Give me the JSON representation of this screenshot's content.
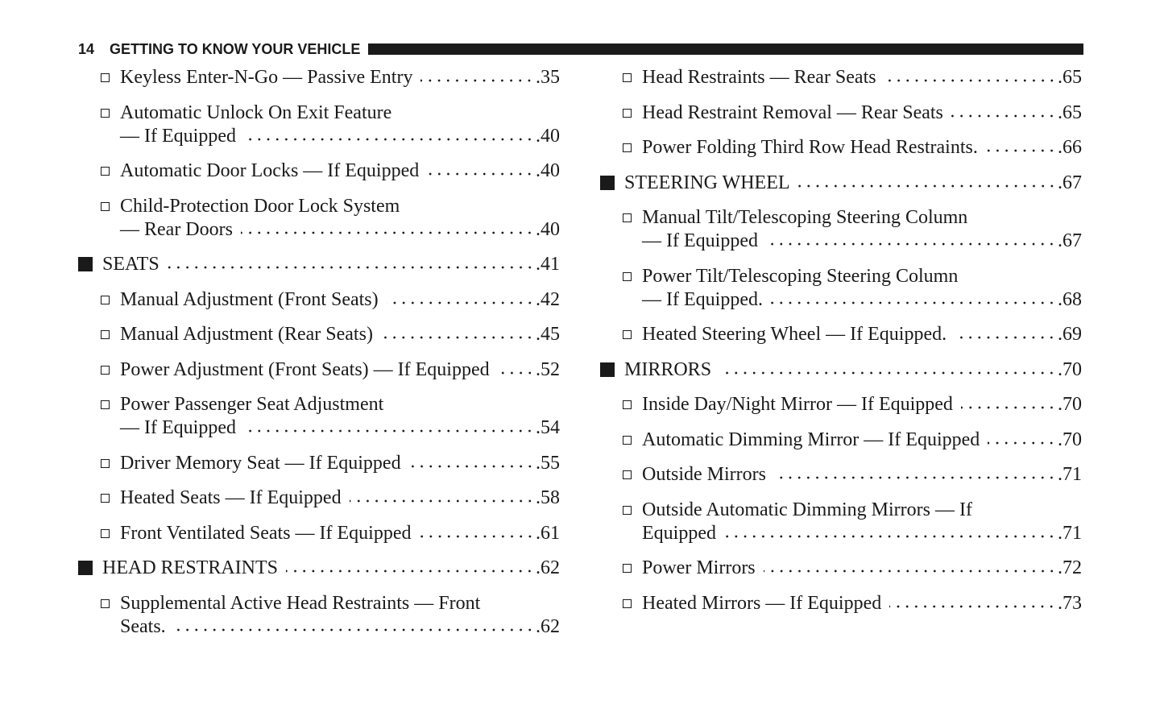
{
  "header": {
    "page_number": "14",
    "title": "GETTING TO KNOW YOUR VEHICLE"
  },
  "columns": [
    [
      {
        "level": 2,
        "text": "Keyless Enter-N-Go — Passive Entry",
        "page": "35"
      },
      {
        "level": 2,
        "text": "Automatic Unlock On Exit Feature",
        "cont": "— If Equipped",
        "page": "40"
      },
      {
        "level": 2,
        "text": "Automatic Door Locks — If Equipped",
        "page": "40"
      },
      {
        "level": 2,
        "text": "Child-Protection Door Lock System",
        "cont": "— Rear Doors",
        "page": "40"
      },
      {
        "level": 1,
        "text": "SEATS",
        "page": "41"
      },
      {
        "level": 2,
        "text": "Manual Adjustment (Front Seats)",
        "page": "42"
      },
      {
        "level": 2,
        "text": "Manual Adjustment (Rear Seats)",
        "page": "45"
      },
      {
        "level": 2,
        "text": "Power Adjustment (Front Seats) — If Equipped",
        "page": "52"
      },
      {
        "level": 2,
        "text": "Power Passenger Seat Adjustment",
        "cont": "— If Equipped",
        "page": "54"
      },
      {
        "level": 2,
        "text": "Driver Memory Seat — If Equipped",
        "page": "55"
      },
      {
        "level": 2,
        "text": "Heated Seats — If Equipped",
        "page": "58"
      },
      {
        "level": 2,
        "text": "Front Ventilated Seats — If Equipped",
        "page": "61"
      },
      {
        "level": 1,
        "text": "HEAD RESTRAINTS",
        "page": "62"
      },
      {
        "level": 2,
        "text": "Supplemental Active Head Restraints — Front",
        "cont": "Seats.",
        "page": "62"
      }
    ],
    [
      {
        "level": 2,
        "text": "Head Restraints — Rear Seats",
        "page": "65"
      },
      {
        "level": 2,
        "text": "Head Restraint Removal — Rear Seats",
        "page": "65"
      },
      {
        "level": 2,
        "text": "Power Folding Third Row Head Restraints.",
        "page": "66"
      },
      {
        "level": 1,
        "text": "STEERING WHEEL",
        "page": "67"
      },
      {
        "level": 2,
        "text": "Manual Tilt/Telescoping Steering Column",
        "cont": "— If Equipped",
        "page": "67"
      },
      {
        "level": 2,
        "text": "Power Tilt/Telescoping Steering Column",
        "cont": "— If Equipped.",
        "page": "68"
      },
      {
        "level": 2,
        "text": "Heated Steering Wheel — If Equipped.",
        "page": "69"
      },
      {
        "level": 1,
        "text": "MIRRORS",
        "page": "70"
      },
      {
        "level": 2,
        "text": "Inside Day/Night Mirror — If Equipped",
        "page": "70"
      },
      {
        "level": 2,
        "text": "Automatic Dimming Mirror — If Equipped",
        "page": "70"
      },
      {
        "level": 2,
        "text": "Outside Mirrors",
        "page": "71"
      },
      {
        "level": 2,
        "text": "Outside Automatic Dimming Mirrors — If",
        "cont": "Equipped",
        "page": "71"
      },
      {
        "level": 2,
        "text": "Power Mirrors",
        "page": "72"
      },
      {
        "level": 2,
        "text": "Heated Mirrors — If Equipped",
        "page": "73"
      }
    ]
  ]
}
